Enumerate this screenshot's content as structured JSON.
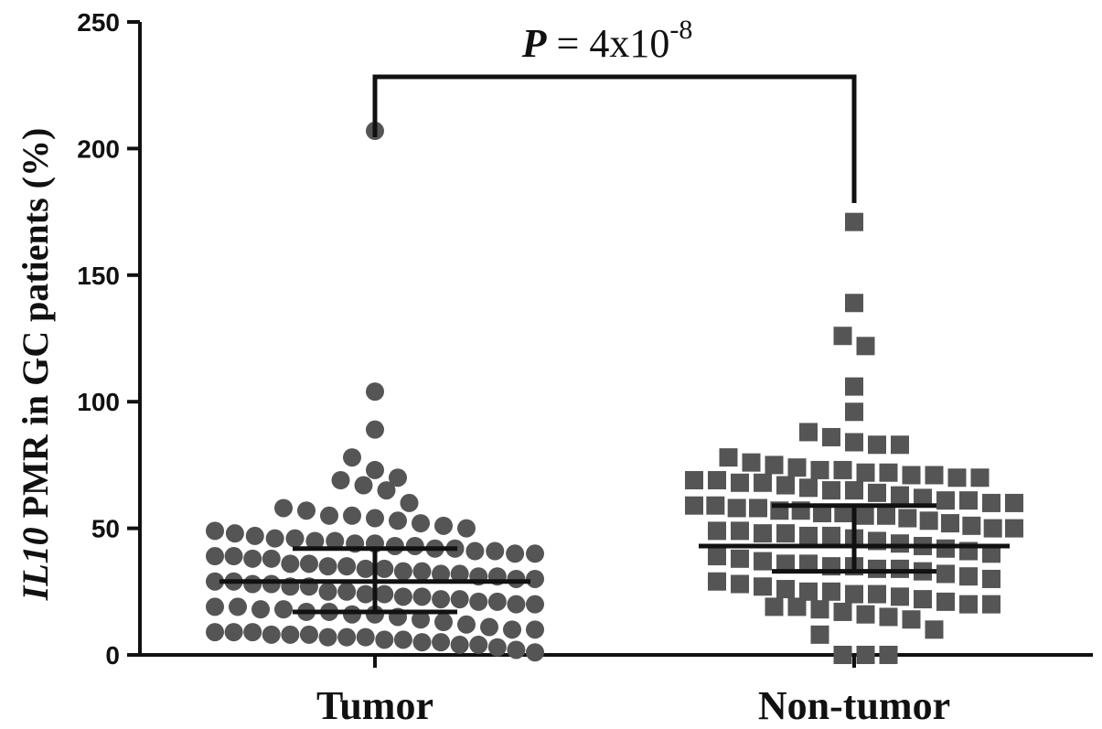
{
  "chart_data": {
    "type": "scatter",
    "title": "",
    "ylabel": {
      "italic": "IL10",
      "rest": " PMR in GC patients (%)"
    },
    "ylim": [
      0,
      250
    ],
    "yticks": [
      "0",
      "50",
      "100",
      "150",
      "200",
      "250"
    ],
    "categories": [
      "Tumor",
      "Non-tumor"
    ],
    "colors": {
      "tumor": "#555555",
      "nontumor": "#555555",
      "axis": "#111111",
      "errorbar": "#111111"
    },
    "annotation": {
      "p_label": "P",
      "p_rest": " = 4x10",
      "p_exp": "-8"
    },
    "series": [
      {
        "category": "Tumor",
        "marker": "circle",
        "mean": 29,
        "sd_low": 17,
        "sd_high": 42,
        "values": [
          207,
          104,
          89,
          78,
          73,
          70,
          69,
          67,
          65,
          60,
          58,
          57,
          55,
          55,
          54,
          53,
          52,
          51,
          50,
          49,
          48,
          47,
          46,
          46,
          45,
          45,
          44,
          44,
          43,
          43,
          42,
          42,
          41,
          41,
          40,
          40,
          39,
          39,
          38,
          38,
          36,
          36,
          35,
          35,
          34,
          34,
          33,
          33,
          32,
          32,
          31,
          31,
          30,
          30,
          29,
          29,
          28,
          28,
          27,
          27,
          25,
          25,
          24,
          24,
          23,
          23,
          22,
          22,
          21,
          21,
          20,
          20,
          19,
          19,
          18,
          18,
          17,
          17,
          16,
          16,
          15,
          14,
          13,
          12,
          11,
          10,
          10,
          9,
          9,
          9,
          8,
          8,
          8,
          7,
          7,
          7,
          6,
          6,
          5,
          5,
          4,
          4,
          3,
          2,
          1
        ]
      },
      {
        "category": "Non-tumor",
        "marker": "square",
        "mean": 43,
        "sd_low": 33,
        "sd_high": 59,
        "values": [
          171,
          139,
          126,
          122,
          106,
          96,
          88,
          86,
          84,
          83,
          83,
          78,
          76,
          75,
          74,
          73,
          73,
          72,
          72,
          71,
          71,
          70,
          70,
          69,
          69,
          68,
          68,
          67,
          66,
          65,
          65,
          64,
          63,
          62,
          61,
          61,
          60,
          60,
          59,
          59,
          58,
          58,
          57,
          57,
          56,
          56,
          55,
          55,
          54,
          53,
          52,
          51,
          50,
          50,
          49,
          49,
          48,
          48,
          47,
          47,
          46,
          45,
          44,
          43,
          42,
          41,
          40,
          39,
          38,
          37,
          36,
          36,
          35,
          35,
          34,
          34,
          33,
          32,
          31,
          30,
          29,
          28,
          27,
          26,
          25,
          25,
          24,
          24,
          23,
          22,
          21,
          20,
          20,
          19,
          19,
          18,
          17,
          16,
          15,
          14,
          10,
          8,
          0,
          0,
          0
        ]
      }
    ]
  }
}
